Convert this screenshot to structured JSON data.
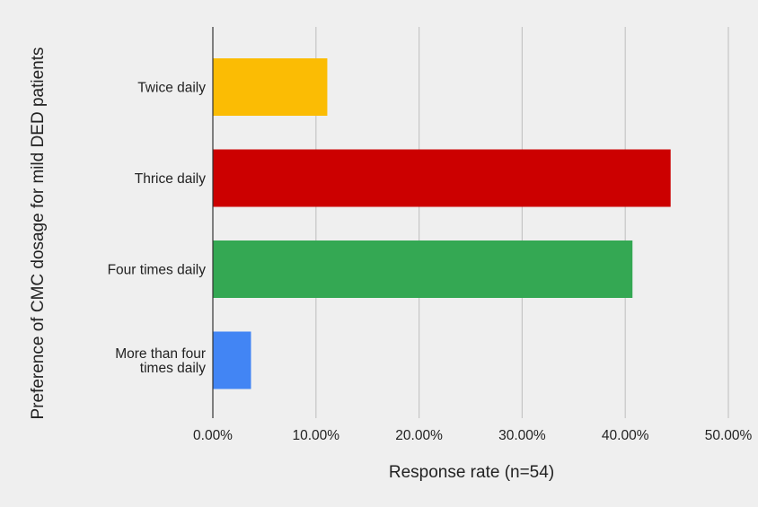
{
  "chart_data": {
    "type": "bar",
    "orientation": "horizontal",
    "categories": [
      "Twice daily",
      "Thrice daily",
      "Four times daily",
      "More than four times daily"
    ],
    "category_label_lines": [
      [
        "Twice daily"
      ],
      [
        "Thrice daily"
      ],
      [
        "Four times daily"
      ],
      [
        "More than four",
        "times daily"
      ]
    ],
    "values": [
      11.1,
      44.4,
      40.7,
      3.7
    ],
    "colors": [
      "#fbbc04",
      "#cc0000",
      "#34a853",
      "#4285f4"
    ],
    "xlim": [
      0,
      50
    ],
    "x_ticks": [
      0,
      10,
      20,
      30,
      40,
      50
    ],
    "x_tick_labels": [
      "0.00%",
      "10.00%",
      "20.00%",
      "30.00%",
      "40.00%",
      "50.00%"
    ],
    "xlabel": "Response rate (n=54)",
    "ylabel": "Preference of CMC dosage for mild DED patients",
    "grid": "vertical",
    "legend": "none"
  }
}
